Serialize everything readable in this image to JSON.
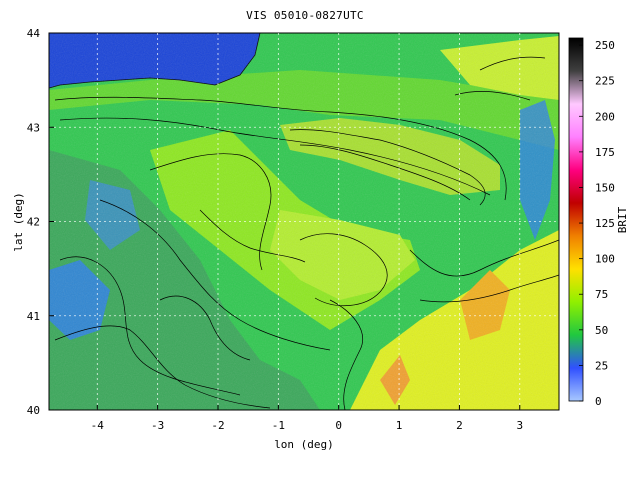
{
  "title": "VIS 05010-0827UTC",
  "map": {
    "xlabel": "lon (deg)",
    "ylabel": "lat (deg)",
    "xlim": [
      -4.8,
      3.65
    ],
    "ylim": [
      40,
      44
    ],
    "xticks": [
      "-4",
      "-3",
      "-2",
      "-1",
      "0",
      "1",
      "2",
      "3"
    ],
    "yticks": [
      "40",
      "41",
      "42",
      "43",
      "44"
    ],
    "grid": "dashed",
    "fill_field": "visible-channel satellite brightness",
    "overlay": "terrain elevation contours (black lines)"
  },
  "colorbar": {
    "label": "BRIT",
    "ticks": [
      "0",
      "25",
      "50",
      "75",
      "100",
      "125",
      "150",
      "175",
      "200",
      "225",
      "250"
    ],
    "range": [
      0,
      255
    ],
    "colors": [
      "#a8c8ff",
      "#3050ff",
      "#20c840",
      "#90f000",
      "#ffe000",
      "#f08000",
      "#c00000",
      "#ff0080",
      "#ff80ff",
      "#ffc8ff",
      "#404040",
      "#000000"
    ]
  },
  "palette": {
    "sea": "#1a44d8",
    "low_brit": "#2d7df0",
    "mid_green": "#30d040",
    "bright_green": "#8ee820",
    "yellow": "#d8f020",
    "orange": "#f0a020"
  }
}
